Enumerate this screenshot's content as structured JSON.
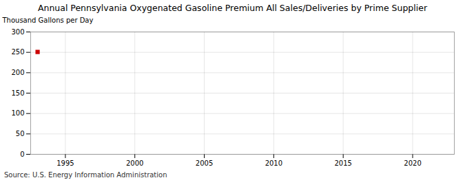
{
  "chart_data": {
    "type": "scatter",
    "title": "Annual Pennsylvania Oxygenated Gasoline Premium All Sales/Deliveries by Prime Supplier",
    "ylabel": "Thousand Gallons per Day",
    "caption": "Source: U.S. Energy Information Administration",
    "x": [
      1993
    ],
    "values": [
      251
    ],
    "color": "#cc0000",
    "marker": "square",
    "xlim": [
      1992.5,
      2023
    ],
    "ylim": [
      0,
      300
    ],
    "xticks": [
      1995,
      2000,
      2005,
      2010,
      2015,
      2020
    ],
    "yticks": [
      0,
      50,
      100,
      150,
      200,
      250,
      300
    ],
    "grid": true
  }
}
